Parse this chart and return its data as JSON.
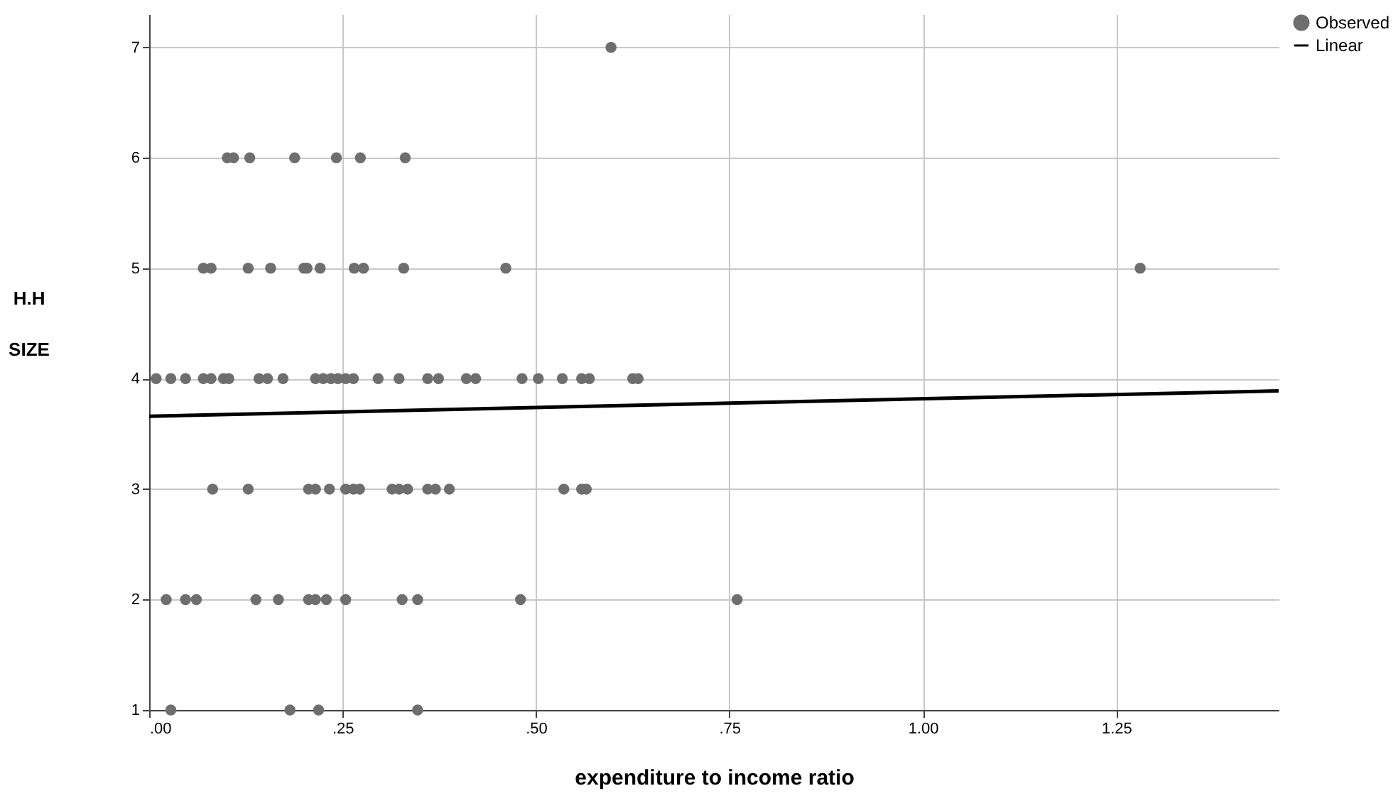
{
  "chart_data": {
    "type": "scatter",
    "xlabel": "expenditure to income ratio",
    "ylabel": "H.H\n\nSIZE",
    "xlim": [
      0,
      1.46
    ],
    "ylim": [
      1,
      7.3
    ],
    "xticks": [
      {
        "value": 0,
        "label": ".00"
      },
      {
        "value": 0.25,
        "label": ".25"
      },
      {
        "value": 0.5,
        "label": ".50"
      },
      {
        "value": 0.75,
        "label": ".75"
      },
      {
        "value": 1.0,
        "label": "1.00"
      },
      {
        "value": 1.25,
        "label": "1.25"
      }
    ],
    "yticks": [
      1,
      2,
      3,
      4,
      5,
      6,
      7
    ],
    "grid": true,
    "legend": "top right",
    "series": [
      {
        "name": "Observed",
        "color": "#6e6e6e",
        "marker": "circle",
        "x": [
          0.597,
          0.101,
          0.109,
          0.13,
          0.188,
          0.242,
          0.273,
          0.331,
          0.07,
          0.08,
          0.128,
          0.157,
          0.2,
          0.204,
          0.221,
          0.265,
          0.277,
          0.329,
          0.461,
          1.281,
          0.009,
          0.028,
          0.047,
          0.07,
          0.08,
          0.096,
          0.103,
          0.142,
          0.153,
          0.173,
          0.215,
          0.225,
          0.235,
          0.244,
          0.254,
          0.264,
          0.296,
          0.323,
          0.36,
          0.374,
          0.41,
          0.422,
          0.482,
          0.503,
          0.534,
          0.559,
          0.569,
          0.625,
          0.632,
          0.082,
          0.128,
          0.206,
          0.215,
          0.233,
          0.254,
          0.264,
          0.272,
          0.314,
          0.323,
          0.334,
          0.36,
          0.37,
          0.388,
          0.536,
          0.559,
          0.565,
          0.022,
          0.047,
          0.061,
          0.138,
          0.167,
          0.206,
          0.215,
          0.229,
          0.254,
          0.327,
          0.347,
          0.48,
          0.76,
          0.028,
          0.182,
          0.219,
          0.347
        ],
        "values": [
          7,
          6,
          6,
          6,
          6,
          6,
          6,
          6,
          5,
          5,
          5,
          5,
          5,
          5,
          5,
          5,
          5,
          5,
          5,
          5,
          4,
          4,
          4,
          4,
          4,
          4,
          4,
          4,
          4,
          4,
          4,
          4,
          4,
          4,
          4,
          4,
          4,
          4,
          4,
          4,
          4,
          4,
          4,
          4,
          4,
          4,
          4,
          4,
          4,
          3,
          3,
          3,
          3,
          3,
          3,
          3,
          3,
          3,
          3,
          3,
          3,
          3,
          3,
          3,
          3,
          3,
          2,
          2,
          2,
          2,
          2,
          2,
          2,
          2,
          2,
          2,
          2,
          2,
          2,
          1,
          1,
          1,
          1
        ]
      },
      {
        "name": "Linear",
        "color": "#000000",
        "type": "line",
        "marker": "none",
        "line_style": "solid",
        "x": [
          0,
          1.46
        ],
        "values": [
          3.66,
          3.89
        ]
      }
    ]
  }
}
